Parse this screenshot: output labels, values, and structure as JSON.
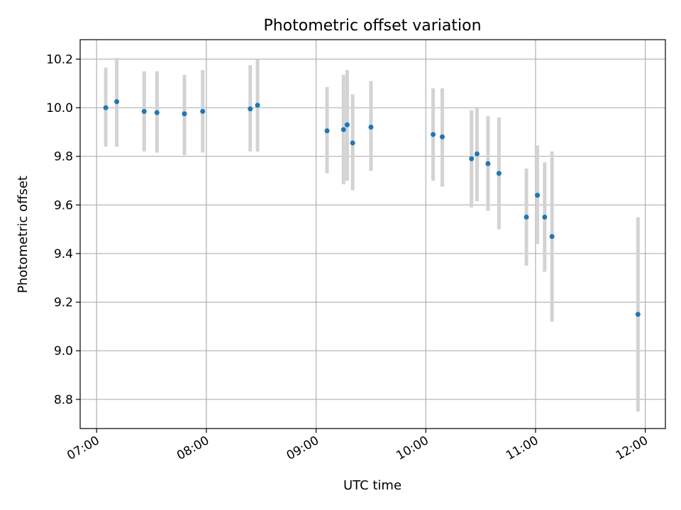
{
  "chart_data": {
    "type": "scatter",
    "title": "Photometric offset variation",
    "xlabel": "UTC time",
    "ylabel": "Photometric offset",
    "x_ticks": [
      "07:00",
      "08:00",
      "09:00",
      "10:00",
      "11:00",
      "12:00"
    ],
    "y_ticks": [
      "8.8",
      "9.0",
      "9.2",
      "9.4",
      "9.6",
      "9.8",
      "10.0",
      "10.2"
    ],
    "xlim": [
      "06:51",
      "12:11"
    ],
    "ylim": [
      8.68,
      10.28
    ],
    "grid": true,
    "legend": "none",
    "colors": {
      "point": "#1f77b4",
      "errorbar": "#d3d3d3"
    },
    "series": [
      {
        "points": [
          {
            "x": "07:05",
            "y": 10.0,
            "ylo": 9.84,
            "yhi": 10.165
          },
          {
            "x": "07:11",
            "y": 10.025,
            "ylo": 9.84,
            "yhi": 10.205
          },
          {
            "x": "07:26",
            "y": 9.985,
            "ylo": 9.82,
            "yhi": 10.15
          },
          {
            "x": "07:33",
            "y": 9.98,
            "ylo": 9.815,
            "yhi": 10.15
          },
          {
            "x": "07:48",
            "y": 9.975,
            "ylo": 9.805,
            "yhi": 10.135
          },
          {
            "x": "07:58",
            "y": 9.985,
            "ylo": 9.815,
            "yhi": 10.155
          },
          {
            "x": "08:24",
            "y": 9.995,
            "ylo": 9.82,
            "yhi": 10.175
          },
          {
            "x": "08:28",
            "y": 10.01,
            "ylo": 9.82,
            "yhi": 10.2
          },
          {
            "x": "09:06",
            "y": 9.905,
            "ylo": 9.73,
            "yhi": 10.085
          },
          {
            "x": "09:15",
            "y": 9.91,
            "ylo": 9.685,
            "yhi": 10.135
          },
          {
            "x": "09:17",
            "y": 9.93,
            "ylo": 9.7,
            "yhi": 10.155
          },
          {
            "x": "09:20",
            "y": 9.855,
            "ylo": 9.66,
            "yhi": 10.055
          },
          {
            "x": "09:30",
            "y": 9.92,
            "ylo": 9.74,
            "yhi": 10.11
          },
          {
            "x": "10:04",
            "y": 9.89,
            "ylo": 9.7,
            "yhi": 10.08
          },
          {
            "x": "10:09",
            "y": 9.88,
            "ylo": 9.675,
            "yhi": 10.08
          },
          {
            "x": "10:25",
            "y": 9.79,
            "ylo": 9.59,
            "yhi": 9.99
          },
          {
            "x": "10:28",
            "y": 9.81,
            "ylo": 9.615,
            "yhi": 10.0
          },
          {
            "x": "10:34",
            "y": 9.77,
            "ylo": 9.575,
            "yhi": 9.965
          },
          {
            "x": "10:40",
            "y": 9.73,
            "ylo": 9.5,
            "yhi": 9.96
          },
          {
            "x": "10:55",
            "y": 9.55,
            "ylo": 9.35,
            "yhi": 9.75
          },
          {
            "x": "11:01",
            "y": 9.64,
            "ylo": 9.44,
            "yhi": 9.845
          },
          {
            "x": "11:05",
            "y": 9.55,
            "ylo": 9.325,
            "yhi": 9.775
          },
          {
            "x": "11:09",
            "y": 9.47,
            "ylo": 9.12,
            "yhi": 9.82
          },
          {
            "x": "11:56",
            "y": 9.15,
            "ylo": 8.75,
            "yhi": 9.55
          }
        ]
      }
    ]
  }
}
